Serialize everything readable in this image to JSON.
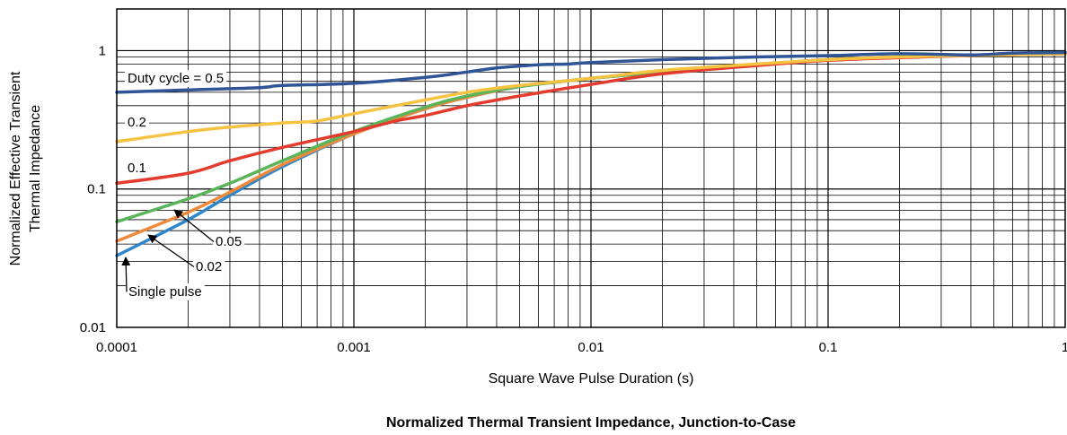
{
  "chart_data": {
    "type": "line",
    "title": "Normalized Thermal Transient Impedance, Junction-to-Case",
    "xlabel": "Square Wave Pulse Duration (s)",
    "ylabel_lines": [
      "Normalized Effective Transient",
      "Thermal Impedance"
    ],
    "xscale": "log",
    "yscale": "log",
    "xlim": [
      0.0001,
      1
    ],
    "ylim": [
      0.01,
      2
    ],
    "grid": true,
    "x_ticks": [
      {
        "value": 0.0001,
        "label": "0.0001"
      },
      {
        "value": 0.001,
        "label": "0.001"
      },
      {
        "value": 0.01,
        "label": "0.01"
      },
      {
        "value": 0.1,
        "label": "0.1"
      },
      {
        "value": 1,
        "label": "1"
      }
    ],
    "y_ticks": [
      {
        "value": 0.01,
        "label": "0.01"
      },
      {
        "value": 0.1,
        "label": "0.1"
      },
      {
        "value": 1,
        "label": "1"
      }
    ],
    "series": [
      {
        "name": "Duty cycle = 0.5",
        "color": "#2f5597",
        "x": [
          0.0001,
          0.0002,
          0.0004,
          0.0005,
          0.001,
          0.002,
          0.003,
          0.004,
          0.006,
          0.008,
          0.01,
          0.02,
          0.05,
          0.1,
          0.2,
          0.4,
          0.6,
          1
        ],
        "y": [
          0.5,
          0.52,
          0.54,
          0.56,
          0.58,
          0.64,
          0.7,
          0.75,
          0.79,
          0.8,
          0.82,
          0.86,
          0.9,
          0.92,
          0.95,
          0.93,
          0.96,
          0.97
        ]
      },
      {
        "name": "0.2",
        "color": "#f5c242",
        "x": [
          0.0001,
          0.0002,
          0.0003,
          0.0005,
          0.0007,
          0.001,
          0.002,
          0.003,
          0.005,
          0.01,
          0.02,
          0.05,
          0.1,
          0.2,
          0.5,
          1
        ],
        "y": [
          0.22,
          0.26,
          0.28,
          0.3,
          0.31,
          0.35,
          0.44,
          0.5,
          0.56,
          0.63,
          0.72,
          0.8,
          0.86,
          0.9,
          0.93,
          0.95
        ]
      },
      {
        "name": "0.1",
        "color": "#e33b2e",
        "x": [
          0.0001,
          0.0002,
          0.0003,
          0.0005,
          0.001,
          0.0015,
          0.002,
          0.003,
          0.005,
          0.01,
          0.02,
          0.05,
          0.1,
          0.2,
          0.5,
          1
        ],
        "y": [
          0.11,
          0.13,
          0.16,
          0.2,
          0.26,
          0.31,
          0.34,
          0.4,
          0.47,
          0.57,
          0.68,
          0.78,
          0.85,
          0.89,
          0.93,
          0.95
        ]
      },
      {
        "name": "0.05",
        "color": "#5ab55a",
        "x": [
          0.0001,
          0.0002,
          0.0003,
          0.0005,
          0.001,
          0.002,
          0.003,
          0.005,
          0.01,
          0.02,
          0.05,
          0.1,
          0.2,
          0.5,
          1
        ],
        "y": [
          0.058,
          0.085,
          0.11,
          0.16,
          0.26,
          0.39,
          0.47,
          0.55,
          0.63,
          0.7,
          0.79,
          0.86,
          0.9,
          0.93,
          0.95
        ]
      },
      {
        "name": "0.02",
        "color": "#ef8a3c",
        "x": [
          0.0001,
          0.0002,
          0.0003,
          0.0005,
          0.001,
          0.002,
          0.003,
          0.005,
          0.01,
          0.02,
          0.05,
          0.1,
          0.2,
          0.5,
          1
        ],
        "y": [
          0.042,
          0.068,
          0.095,
          0.15,
          0.25,
          0.38,
          0.46,
          0.55,
          0.63,
          0.7,
          0.79,
          0.86,
          0.9,
          0.93,
          0.95
        ]
      },
      {
        "name": "Single pulse",
        "color": "#2f86c9",
        "x": [
          0.0001,
          0.0002,
          0.0003,
          0.0005,
          0.001,
          0.002,
          0.003,
          0.005,
          0.01,
          0.02,
          0.05,
          0.1,
          0.2,
          0.5,
          1
        ],
        "y": [
          0.033,
          0.06,
          0.09,
          0.145,
          0.25,
          0.38,
          0.46,
          0.55,
          0.63,
          0.7,
          0.79,
          0.86,
          0.9,
          0.93,
          0.95
        ]
      }
    ],
    "annotations": [
      {
        "text": "Duty cycle = 0.5",
        "series": "Duty cycle = 0.5",
        "type": "label"
      },
      {
        "text": "0.2",
        "series": "0.2",
        "type": "label"
      },
      {
        "text": "0.1",
        "series": "0.1",
        "type": "label"
      },
      {
        "text": "0.05",
        "series": "0.05",
        "type": "arrow"
      },
      {
        "text": "0.02",
        "series": "0.02",
        "type": "arrow"
      },
      {
        "text": "Single pulse",
        "series": "Single pulse",
        "type": "arrow"
      }
    ]
  }
}
